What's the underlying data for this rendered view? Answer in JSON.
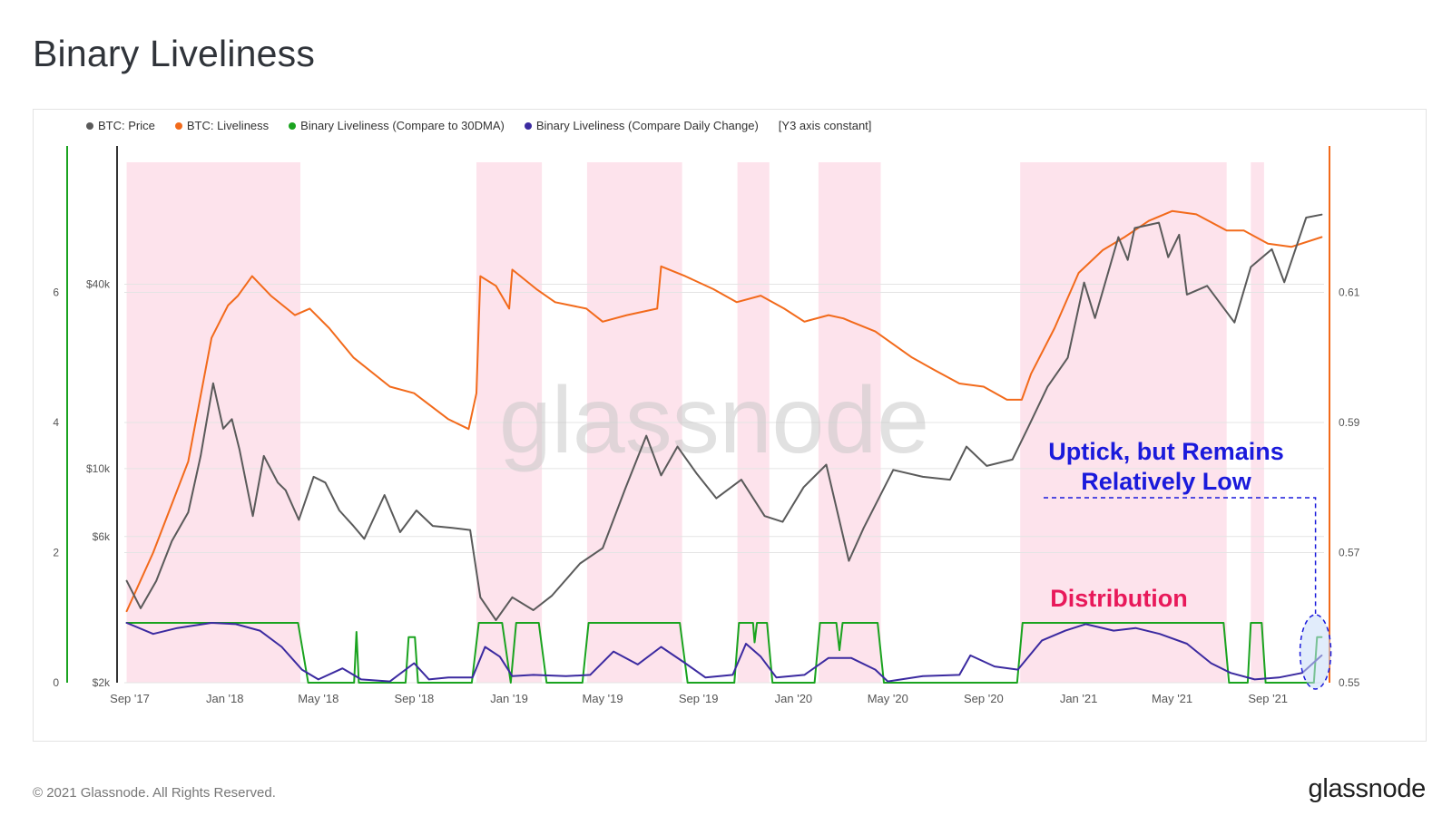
{
  "title": "Binary Liveliness",
  "copyright": "© 2021 Glassnode. All Rights Reserved.",
  "brand": "glassnode",
  "watermark": "glassnode",
  "legend": [
    {
      "label": "BTC: Price",
      "color": "#5a5a5a"
    },
    {
      "label": "BTC: Liveliness",
      "color": "#f26a1b"
    },
    {
      "label": "Binary Liveliness (Compare to 30DMA)",
      "color": "#1aa31f"
    },
    {
      "label": "Binary Liveliness (Compare Daily Change)",
      "color": "#3b2aa0"
    }
  ],
  "legend_note": "[Y3 axis constant]",
  "annotations": {
    "uptick_line1": "Uptick, but Remains",
    "uptick_line2": "Relatively Low",
    "distribution": "Distribution"
  },
  "chart_data": {
    "type": "line",
    "x_range": [
      "2017-08-25",
      "2021-11-12"
    ],
    "x_ticks": [
      {
        "date": "2017-09-01",
        "label": "Sep '17"
      },
      {
        "date": "2018-01-01",
        "label": "Jan '18"
      },
      {
        "date": "2018-05-01",
        "label": "May '18"
      },
      {
        "date": "2018-09-01",
        "label": "Sep '18"
      },
      {
        "date": "2019-01-01",
        "label": "Jan '19"
      },
      {
        "date": "2019-05-01",
        "label": "May '19"
      },
      {
        "date": "2019-09-01",
        "label": "Sep '19"
      },
      {
        "date": "2020-01-01",
        "label": "Jan '20"
      },
      {
        "date": "2020-05-01",
        "label": "May '20"
      },
      {
        "date": "2020-09-01",
        "label": "Sep '20"
      },
      {
        "date": "2021-01-01",
        "label": "Jan '21"
      },
      {
        "date": "2021-05-01",
        "label": "May '21"
      },
      {
        "date": "2021-09-01",
        "label": "Sep '21"
      }
    ],
    "axes": {
      "binary": {
        "side": "left",
        "min": 0,
        "max": 8,
        "ticks": [
          0,
          2,
          4,
          6
        ],
        "color": "#1aa31f"
      },
      "price": {
        "side": "left",
        "scale": "log",
        "min": 2000,
        "max": 100000,
        "ticks": [
          {
            "value": 2000,
            "label": "$2k"
          },
          {
            "value": 6000,
            "label": "$6k"
          },
          {
            "value": 10000,
            "label": "$10k"
          },
          {
            "value": 40000,
            "label": "$40k"
          }
        ],
        "color": "#333"
      },
      "liveliness": {
        "side": "right",
        "min": 0.55,
        "max": 0.63,
        "ticks": [
          0.55,
          0.57,
          0.59,
          0.61
        ],
        "color": "#f26a1b"
      }
    },
    "distribution_periods": [
      [
        "2017-08-28",
        "2018-04-08"
      ],
      [
        "2018-11-20",
        "2019-02-12"
      ],
      [
        "2019-04-11",
        "2019-08-11"
      ],
      [
        "2019-10-21",
        "2019-12-01"
      ],
      [
        "2020-02-02",
        "2020-04-22"
      ],
      [
        "2020-10-18",
        "2021-07-10"
      ],
      [
        "2021-08-10",
        "2021-08-27"
      ]
    ],
    "series": [
      {
        "name": "BTC: Price",
        "axis": "price",
        "color": "#5a5a5a",
        "points": [
          [
            "2017-08-28",
            4300
          ],
          [
            "2017-09-15",
            3500
          ],
          [
            "2017-10-05",
            4300
          ],
          [
            "2017-10-25",
            5800
          ],
          [
            "2017-11-15",
            7200
          ],
          [
            "2017-12-01",
            11000
          ],
          [
            "2017-12-17",
            19000
          ],
          [
            "2017-12-30",
            13500
          ],
          [
            "2018-01-10",
            14500
          ],
          [
            "2018-01-20",
            11500
          ],
          [
            "2018-02-06",
            7000
          ],
          [
            "2018-02-20",
            11000
          ],
          [
            "2018-03-10",
            9000
          ],
          [
            "2018-03-20",
            8500
          ],
          [
            "2018-04-06",
            6800
          ],
          [
            "2018-04-25",
            9400
          ],
          [
            "2018-05-10",
            9000
          ],
          [
            "2018-05-28",
            7300
          ],
          [
            "2018-06-15",
            6500
          ],
          [
            "2018-06-29",
            5900
          ],
          [
            "2018-07-25",
            8200
          ],
          [
            "2018-08-14",
            6200
          ],
          [
            "2018-09-04",
            7300
          ],
          [
            "2018-09-25",
            6500
          ],
          [
            "2018-10-20",
            6400
          ],
          [
            "2018-11-12",
            6300
          ],
          [
            "2018-11-25",
            3800
          ],
          [
            "2018-12-15",
            3200
          ],
          [
            "2019-01-05",
            3800
          ],
          [
            "2019-02-01",
            3450
          ],
          [
            "2019-02-25",
            3850
          ],
          [
            "2019-04-02",
            4900
          ],
          [
            "2019-05-01",
            5500
          ],
          [
            "2019-05-30",
            8600
          ],
          [
            "2019-06-26",
            12800
          ],
          [
            "2019-07-15",
            9500
          ],
          [
            "2019-08-05",
            11800
          ],
          [
            "2019-08-30",
            9600
          ],
          [
            "2019-09-24",
            8000
          ],
          [
            "2019-10-26",
            9200
          ],
          [
            "2019-11-25",
            7000
          ],
          [
            "2019-12-18",
            6700
          ],
          [
            "2020-01-14",
            8700
          ],
          [
            "2020-02-12",
            10300
          ],
          [
            "2020-03-12",
            5000
          ],
          [
            "2020-03-31",
            6400
          ],
          [
            "2020-05-08",
            9900
          ],
          [
            "2020-06-15",
            9400
          ],
          [
            "2020-07-20",
            9200
          ],
          [
            "2020-08-10",
            11800
          ],
          [
            "2020-09-05",
            10200
          ],
          [
            "2020-10-08",
            10700
          ],
          [
            "2020-10-28",
            13600
          ],
          [
            "2020-11-22",
            18500
          ],
          [
            "2020-12-18",
            23000
          ],
          [
            "2021-01-08",
            40500
          ],
          [
            "2021-01-22",
            31000
          ],
          [
            "2021-02-21",
            57000
          ],
          [
            "2021-03-05",
            48000
          ],
          [
            "2021-03-14",
            61000
          ],
          [
            "2021-04-14",
            63500
          ],
          [
            "2021-04-26",
            49000
          ],
          [
            "2021-05-10",
            58000
          ],
          [
            "2021-05-20",
            37000
          ],
          [
            "2021-06-15",
            39500
          ],
          [
            "2021-07-20",
            30000
          ],
          [
            "2021-08-10",
            45500
          ],
          [
            "2021-09-06",
            52000
          ],
          [
            "2021-09-22",
            40600
          ],
          [
            "2021-10-20",
            66000
          ],
          [
            "2021-11-09",
            67500
          ]
        ]
      },
      {
        "name": "BTC: Liveliness",
        "axis": "liveliness",
        "color": "#f26a1b",
        "points": [
          [
            "2017-08-28",
            0.561
          ],
          [
            "2017-10-01",
            0.57
          ],
          [
            "2017-11-15",
            0.584
          ],
          [
            "2017-12-15",
            0.603
          ],
          [
            "2018-01-05",
            0.608
          ],
          [
            "2018-01-18",
            0.6095
          ],
          [
            "2018-02-05",
            0.6125
          ],
          [
            "2018-03-01",
            0.6095
          ],
          [
            "2018-04-01",
            0.6065
          ],
          [
            "2018-04-20",
            0.6075
          ],
          [
            "2018-05-15",
            0.6045
          ],
          [
            "2018-06-15",
            0.6
          ],
          [
            "2018-08-01",
            0.5955
          ],
          [
            "2018-09-01",
            0.5945
          ],
          [
            "2018-10-15",
            0.5905
          ],
          [
            "2018-11-10",
            0.589
          ],
          [
            "2018-11-20",
            0.5945
          ],
          [
            "2018-11-25",
            0.6125
          ],
          [
            "2018-12-15",
            0.611
          ],
          [
            "2019-01-01",
            0.6075
          ],
          [
            "2019-01-05",
            0.6135
          ],
          [
            "2019-02-05",
            0.6105
          ],
          [
            "2019-03-01",
            0.6085
          ],
          [
            "2019-04-10",
            0.6075
          ],
          [
            "2019-05-01",
            0.6055
          ],
          [
            "2019-06-01",
            0.6065
          ],
          [
            "2019-07-10",
            0.6075
          ],
          [
            "2019-07-15",
            0.614
          ],
          [
            "2019-08-15",
            0.6125
          ],
          [
            "2019-09-20",
            0.6105
          ],
          [
            "2019-10-20",
            0.6085
          ],
          [
            "2019-11-20",
            0.6095
          ],
          [
            "2019-12-20",
            0.6075
          ],
          [
            "2020-01-15",
            0.6055
          ],
          [
            "2020-02-15",
            0.6065
          ],
          [
            "2020-03-05",
            0.606
          ],
          [
            "2020-03-15",
            0.6055
          ],
          [
            "2020-04-15",
            0.604
          ],
          [
            "2020-06-01",
            0.6
          ],
          [
            "2020-07-01",
            0.598
          ],
          [
            "2020-08-01",
            0.596
          ],
          [
            "2020-09-01",
            0.5955
          ],
          [
            "2020-10-01",
            0.5935
          ],
          [
            "2020-10-20",
            0.5935
          ],
          [
            "2020-11-01",
            0.5975
          ],
          [
            "2020-12-01",
            0.6045
          ],
          [
            "2021-01-01",
            0.613
          ],
          [
            "2021-02-01",
            0.6165
          ],
          [
            "2021-03-01",
            0.6185
          ],
          [
            "2021-04-01",
            0.621
          ],
          [
            "2021-05-01",
            0.6225
          ],
          [
            "2021-06-01",
            0.622
          ],
          [
            "2021-07-10",
            0.6195
          ],
          [
            "2021-08-01",
            0.6195
          ],
          [
            "2021-09-01",
            0.6175
          ],
          [
            "2021-10-01",
            0.617
          ],
          [
            "2021-11-09",
            0.6185
          ]
        ]
      },
      {
        "name": "Binary Liveliness (Compare to 30DMA)",
        "axis": "binary",
        "color": "#1aa31f",
        "points": [
          [
            "2017-08-28",
            0.92
          ],
          [
            "2018-04-05",
            0.92
          ],
          [
            "2018-04-18",
            0
          ],
          [
            "2018-06-16",
            0
          ],
          [
            "2018-06-19",
            0.78
          ],
          [
            "2018-06-22",
            0
          ],
          [
            "2018-08-21",
            0
          ],
          [
            "2018-08-25",
            0.7
          ],
          [
            "2018-09-02",
            0.7
          ],
          [
            "2018-09-06",
            0
          ],
          [
            "2018-11-14",
            0
          ],
          [
            "2018-11-23",
            0.92
          ],
          [
            "2018-12-23",
            0.92
          ],
          [
            "2019-01-03",
            0
          ],
          [
            "2019-01-10",
            0.92
          ],
          [
            "2019-02-08",
            0.92
          ],
          [
            "2019-02-18",
            0
          ],
          [
            "2019-04-05",
            0
          ],
          [
            "2019-04-13",
            0.92
          ],
          [
            "2019-08-08",
            0.92
          ],
          [
            "2019-08-18",
            0
          ],
          [
            "2019-10-17",
            0
          ],
          [
            "2019-10-23",
            0.92
          ],
          [
            "2019-11-10",
            0.92
          ],
          [
            "2019-11-12",
            0.62
          ],
          [
            "2019-11-15",
            0.92
          ],
          [
            "2019-11-28",
            0.92
          ],
          [
            "2019-12-05",
            0
          ],
          [
            "2020-01-28",
            0
          ],
          [
            "2020-02-04",
            0.92
          ],
          [
            "2020-02-25",
            0.92
          ],
          [
            "2020-02-29",
            0.5
          ],
          [
            "2020-03-04",
            0.92
          ],
          [
            "2020-04-18",
            0.92
          ],
          [
            "2020-04-26",
            0
          ],
          [
            "2020-10-14",
            0
          ],
          [
            "2020-10-21",
            0.92
          ],
          [
            "2021-07-06",
            0.92
          ],
          [
            "2021-07-13",
            0
          ],
          [
            "2021-08-06",
            0
          ],
          [
            "2021-08-10",
            0.92
          ],
          [
            "2021-08-24",
            0.92
          ],
          [
            "2021-08-29",
            0
          ],
          [
            "2021-10-30",
            0
          ],
          [
            "2021-11-03",
            0.7
          ],
          [
            "2021-11-09",
            0.7
          ]
        ]
      },
      {
        "name": "Binary Liveliness (Compare Daily Change)",
        "axis": "binary",
        "color": "#3b2aa0",
        "points": [
          [
            "2017-08-28",
            0.92
          ],
          [
            "2017-10-01",
            0.75
          ],
          [
            "2017-11-01",
            0.84
          ],
          [
            "2017-12-15",
            0.92
          ],
          [
            "2018-01-15",
            0.9
          ],
          [
            "2018-02-15",
            0.8
          ],
          [
            "2018-03-15",
            0.55
          ],
          [
            "2018-04-10",
            0.2
          ],
          [
            "2018-05-01",
            0.05
          ],
          [
            "2018-06-01",
            0.22
          ],
          [
            "2018-06-25",
            0.05
          ],
          [
            "2018-08-01",
            0.02
          ],
          [
            "2018-09-01",
            0.3
          ],
          [
            "2018-09-20",
            0.05
          ],
          [
            "2018-10-15",
            0.08
          ],
          [
            "2018-11-15",
            0.08
          ],
          [
            "2018-12-01",
            0.55
          ],
          [
            "2018-12-20",
            0.4
          ],
          [
            "2019-01-05",
            0.1
          ],
          [
            "2019-02-01",
            0.12
          ],
          [
            "2019-03-15",
            0.1
          ],
          [
            "2019-04-15",
            0.12
          ],
          [
            "2019-05-15",
            0.48
          ],
          [
            "2019-06-15",
            0.28
          ],
          [
            "2019-07-15",
            0.55
          ],
          [
            "2019-08-15",
            0.3
          ],
          [
            "2019-09-10",
            0.08
          ],
          [
            "2019-10-15",
            0.12
          ],
          [
            "2019-11-01",
            0.6
          ],
          [
            "2019-11-20",
            0.4
          ],
          [
            "2019-12-10",
            0.08
          ],
          [
            "2020-01-15",
            0.12
          ],
          [
            "2020-02-15",
            0.38
          ],
          [
            "2020-03-15",
            0.38
          ],
          [
            "2020-04-15",
            0.2
          ],
          [
            "2020-05-01",
            0.02
          ],
          [
            "2020-06-15",
            0.1
          ],
          [
            "2020-08-01",
            0.12
          ],
          [
            "2020-08-15",
            0.42
          ],
          [
            "2020-09-15",
            0.25
          ],
          [
            "2020-10-15",
            0.2
          ],
          [
            "2020-11-15",
            0.65
          ],
          [
            "2020-12-15",
            0.8
          ],
          [
            "2021-01-10",
            0.9
          ],
          [
            "2021-02-15",
            0.8
          ],
          [
            "2021-03-15",
            0.84
          ],
          [
            "2021-04-15",
            0.75
          ],
          [
            "2021-05-20",
            0.6
          ],
          [
            "2021-06-20",
            0.3
          ],
          [
            "2021-07-15",
            0.15
          ],
          [
            "2021-08-15",
            0.05
          ],
          [
            "2021-09-15",
            0.08
          ],
          [
            "2021-10-15",
            0.15
          ],
          [
            "2021-11-09",
            0.42
          ]
        ]
      }
    ]
  }
}
